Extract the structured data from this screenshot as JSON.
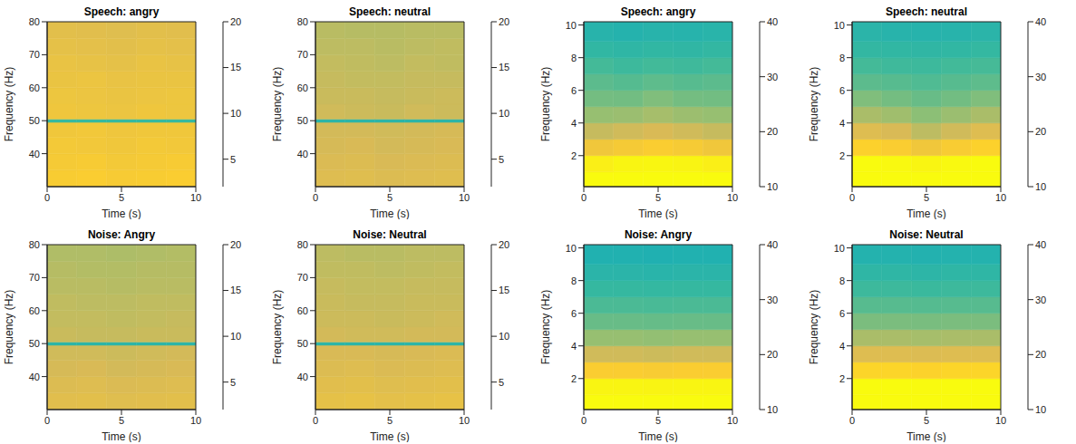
{
  "chart_data": [
    {
      "type": "heatmap",
      "title": "Speech: angry",
      "x_label": "Time (s)",
      "y_label": "Frequency (Hz)",
      "xlim": [
        0,
        10
      ],
      "xticks": [
        0,
        5,
        10
      ],
      "ylim": [
        30,
        80
      ],
      "yticks": [
        40,
        50,
        60,
        70,
        80
      ],
      "x_edges": [
        0,
        2,
        4,
        6,
        8,
        10
      ],
      "y_edges": [
        30,
        35,
        40,
        45,
        49.5,
        50.5,
        55,
        60,
        65,
        70,
        75,
        80
      ],
      "cells": [
        [
          17.5,
          17.6,
          17.4,
          17.5,
          17.6
        ],
        [
          17.3,
          17.4,
          17.2,
          17.3,
          17.4
        ],
        [
          17.2,
          17.1,
          17.0,
          17.2,
          17.1
        ],
        [
          17.0,
          17.1,
          16.9,
          17.0,
          17.0
        ],
        [
          11,
          11,
          11,
          11,
          11
        ],
        [
          16.9,
          16.8,
          16.7,
          16.9,
          16.8
        ],
        [
          16.8,
          16.7,
          16.6,
          16.7,
          16.8
        ],
        [
          16.6,
          16.7,
          16.5,
          16.6,
          16.6
        ],
        [
          16.5,
          16.4,
          16.3,
          16.5,
          16.4
        ],
        [
          16.3,
          16.2,
          16.1,
          16.3,
          16.2
        ],
        [
          16.1,
          16.0,
          15.9,
          16.1,
          16.0
        ]
      ],
      "colorbar": {
        "range": [
          2,
          20
        ],
        "ticks": [
          5,
          10,
          15,
          20
        ]
      }
    },
    {
      "type": "heatmap",
      "title": "Speech: neutral",
      "x_label": "Time (s)",
      "y_label": "Frequency (Hz)",
      "xlim": [
        0,
        10
      ],
      "xticks": [
        0,
        5,
        10
      ],
      "ylim": [
        30,
        80
      ],
      "yticks": [
        40,
        50,
        60,
        70,
        80
      ],
      "x_edges": [
        0,
        2,
        4,
        6,
        8,
        10
      ],
      "y_edges": [
        30,
        35,
        40,
        45,
        49.5,
        50.5,
        55,
        60,
        65,
        70,
        75,
        80
      ],
      "cells": [
        [
          15.8,
          15.9,
          15.7,
          15.8,
          15.9
        ],
        [
          15.6,
          15.7,
          15.5,
          15.6,
          15.7
        ],
        [
          15.4,
          15.5,
          15.3,
          15.4,
          15.5
        ],
        [
          15.3,
          15.3,
          15.2,
          15.3,
          15.4
        ],
        [
          10.5,
          10.5,
          10.5,
          10.5,
          10.5
        ],
        [
          15.2,
          15.1,
          15.0,
          15.2,
          15.1
        ],
        [
          15.0,
          15.0,
          14.9,
          15.0,
          15.1
        ],
        [
          14.9,
          14.8,
          14.8,
          14.9,
          14.9
        ],
        [
          14.8,
          14.7,
          14.6,
          14.8,
          14.7
        ],
        [
          14.6,
          14.6,
          14.5,
          14.6,
          14.7
        ],
        [
          14.5,
          14.4,
          14.4,
          14.5,
          14.5
        ]
      ],
      "colorbar": {
        "range": [
          2,
          20
        ],
        "ticks": [
          5,
          10,
          15,
          20
        ]
      }
    },
    {
      "type": "heatmap",
      "title": "Speech: angry",
      "x_label": "Time (s)",
      "y_label": "Frequency (Hz)",
      "xlim": [
        0,
        10
      ],
      "xticks": [
        0,
        5,
        10
      ],
      "ylim": [
        0.1,
        10.2
      ],
      "yticks": [
        2,
        4,
        6,
        8,
        10
      ],
      "x_edges": [
        0,
        2,
        4,
        6,
        8,
        10
      ],
      "y_edges": [
        0.1,
        1,
        2,
        3,
        4,
        5,
        6,
        7,
        8,
        9,
        10.2
      ],
      "cells": [
        [
          40,
          40,
          40,
          40,
          40
        ],
        [
          39,
          39.5,
          39.6,
          39.4,
          39
        ],
        [
          35,
          35.5,
          36,
          35.6,
          35
        ],
        [
          31.5,
          32,
          32.5,
          32,
          31.5
        ],
        [
          29,
          29.2,
          29.8,
          29.3,
          29
        ],
        [
          27.5,
          27.4,
          28,
          27.5,
          27.4
        ],
        [
          26.5,
          26.2,
          26.6,
          26.3,
          26.5
        ],
        [
          25.5,
          25.2,
          25.4,
          25.3,
          25.5
        ],
        [
          24.5,
          24.3,
          24.5,
          24.4,
          24.6
        ],
        [
          23.8,
          23.6,
          23.8,
          23.7,
          23.9
        ]
      ],
      "colorbar": {
        "range": [
          10,
          40
        ],
        "ticks": [
          10,
          20,
          30,
          40
        ]
      }
    },
    {
      "type": "heatmap",
      "title": "Speech: neutral",
      "x_label": "Time (s)",
      "y_label": "Frequency (Hz)",
      "xlim": [
        0,
        10
      ],
      "xticks": [
        0,
        5,
        10
      ],
      "ylim": [
        0.1,
        10.2
      ],
      "yticks": [
        2,
        4,
        6,
        8,
        10
      ],
      "x_edges": [
        0,
        2,
        4,
        6,
        8,
        10
      ],
      "y_edges": [
        0.1,
        1,
        2,
        3,
        4,
        5,
        6,
        7,
        8,
        9,
        10.2
      ],
      "cells": [
        [
          40,
          40,
          40,
          40,
          40
        ],
        [
          40,
          39.8,
          39.5,
          39.8,
          40
        ],
        [
          36.5,
          36,
          35,
          35.8,
          36.5
        ],
        [
          33,
          32.5,
          31,
          32,
          33
        ],
        [
          30,
          29.5,
          28.5,
          29.2,
          30
        ],
        [
          28,
          27.5,
          27,
          27.4,
          28
        ],
        [
          26.5,
          26.3,
          26,
          26.3,
          26.6
        ],
        [
          25.5,
          25.3,
          25.2,
          25.4,
          25.6
        ],
        [
          24.6,
          24.5,
          24.4,
          24.5,
          24.7
        ],
        [
          24,
          23.8,
          23.7,
          23.8,
          24
        ]
      ],
      "colorbar": {
        "range": [
          10,
          40
        ],
        "ticks": [
          10,
          20,
          30,
          40
        ]
      }
    },
    {
      "type": "heatmap",
      "title": "Noise: Angry",
      "x_label": "Time (s)",
      "y_label": "Frequency (Hz)",
      "xlim": [
        0,
        10
      ],
      "xticks": [
        0,
        5,
        10
      ],
      "ylim": [
        30,
        80
      ],
      "yticks": [
        40,
        50,
        60,
        70,
        80
      ],
      "x_edges": [
        0,
        2,
        4,
        6,
        8,
        10
      ],
      "y_edges": [
        30,
        35,
        40,
        45,
        49.5,
        50.5,
        55,
        60,
        65,
        70,
        75,
        80
      ],
      "cells": [
        [
          16.0,
          16.1,
          15.9,
          16.0,
          16.1
        ],
        [
          15.7,
          15.8,
          15.6,
          15.7,
          15.8
        ],
        [
          15.4,
          15.5,
          15.3,
          15.4,
          15.5
        ],
        [
          15.2,
          15.2,
          15.1,
          15.2,
          15.3
        ],
        [
          10.5,
          10.5,
          10.5,
          10.5,
          10.5
        ],
        [
          15.0,
          14.9,
          14.9,
          15.0,
          15.0
        ],
        [
          14.8,
          14.8,
          14.7,
          14.8,
          14.9
        ],
        [
          14.7,
          14.6,
          14.6,
          14.7,
          14.7
        ],
        [
          14.5,
          14.5,
          14.4,
          14.5,
          14.5
        ],
        [
          14.4,
          14.3,
          14.3,
          14.4,
          14.4
        ],
        [
          14.2,
          14.2,
          14.1,
          14.2,
          14.3
        ]
      ],
      "colorbar": {
        "range": [
          2,
          20
        ],
        "ticks": [
          5,
          10,
          15,
          20
        ]
      }
    },
    {
      "type": "heatmap",
      "title": "Noise: Neutral",
      "x_label": "Time (s)",
      "y_label": "Frequency (Hz)",
      "xlim": [
        0,
        10
      ],
      "xticks": [
        0,
        5,
        10
      ],
      "ylim": [
        30,
        80
      ],
      "yticks": [
        40,
        50,
        60,
        70,
        80
      ],
      "x_edges": [
        0,
        2,
        4,
        6,
        8,
        10
      ],
      "y_edges": [
        30,
        35,
        40,
        45,
        49.5,
        50.5,
        55,
        60,
        65,
        70,
        75,
        80
      ],
      "cells": [
        [
          16.3,
          16.4,
          16.2,
          16.3,
          16.4
        ],
        [
          16.0,
          16.1,
          15.9,
          16.0,
          16.1
        ],
        [
          15.7,
          15.8,
          15.6,
          15.7,
          15.8
        ],
        [
          15.5,
          15.5,
          15.4,
          15.5,
          15.6
        ],
        [
          10.5,
          10.5,
          10.5,
          10.5,
          10.5
        ],
        [
          15.3,
          15.2,
          15.2,
          15.3,
          15.3
        ],
        [
          15.1,
          15.1,
          15.0,
          15.1,
          15.2
        ],
        [
          15.0,
          14.9,
          14.9,
          15.0,
          15.0
        ],
        [
          14.9,
          14.8,
          14.8,
          14.9,
          14.9
        ],
        [
          14.7,
          14.7,
          14.6,
          14.7,
          14.8
        ],
        [
          14.6,
          14.5,
          14.5,
          14.6,
          14.6
        ]
      ],
      "colorbar": {
        "range": [
          2,
          20
        ],
        "ticks": [
          5,
          10,
          15,
          20
        ]
      }
    },
    {
      "type": "heatmap",
      "title": "Noise: Angry",
      "x_label": "Time (s)",
      "y_label": "Frequency (Hz)",
      "xlim": [
        0,
        10
      ],
      "xticks": [
        0,
        5,
        10
      ],
      "ylim": [
        0.1,
        10.2
      ],
      "yticks": [
        2,
        4,
        6,
        8,
        10
      ],
      "x_edges": [
        0,
        2,
        4,
        6,
        8,
        10
      ],
      "y_edges": [
        0.1,
        1,
        2,
        3,
        4,
        5,
        6,
        7,
        8,
        9,
        10.2
      ],
      "cells": [
        [
          40,
          40,
          40,
          40,
          40
        ],
        [
          39.5,
          39.5,
          39.4,
          39.5,
          39.5
        ],
        [
          36,
          36,
          35.8,
          36,
          36
        ],
        [
          32,
          32,
          31.8,
          32,
          32
        ],
        [
          29,
          29,
          28.8,
          29,
          29
        ],
        [
          27,
          27,
          26.9,
          27,
          27
        ],
        [
          25.8,
          25.8,
          25.7,
          25.8,
          25.8
        ],
        [
          24.8,
          24.8,
          24.7,
          24.8,
          24.8
        ],
        [
          24,
          24,
          23.9,
          24,
          24
        ],
        [
          23.3,
          23.3,
          23.2,
          23.3,
          23.3
        ]
      ],
      "colorbar": {
        "range": [
          10,
          40
        ],
        "ticks": [
          10,
          20,
          30,
          40
        ]
      }
    },
    {
      "type": "heatmap",
      "title": "Noise: Neutral",
      "x_label": "Time (s)",
      "y_label": "Frequency (Hz)",
      "xlim": [
        0,
        10
      ],
      "xticks": [
        0,
        5,
        10
      ],
      "ylim": [
        0.1,
        10.2
      ],
      "yticks": [
        2,
        4,
        6,
        8,
        10
      ],
      "x_edges": [
        0,
        2,
        4,
        6,
        8,
        10
      ],
      "y_edges": [
        0.1,
        1,
        2,
        3,
        4,
        5,
        6,
        7,
        8,
        9,
        10.2
      ],
      "cells": [
        [
          40,
          40,
          40,
          40,
          40
        ],
        [
          40,
          40,
          39.9,
          40,
          40
        ],
        [
          36.8,
          36.8,
          36.6,
          36.8,
          36.8
        ],
        [
          33,
          33,
          32.8,
          33,
          33
        ],
        [
          30,
          30,
          29.8,
          30,
          30
        ],
        [
          27.8,
          27.8,
          27.7,
          27.8,
          27.8
        ],
        [
          26.3,
          26.3,
          26.2,
          26.3,
          26.3
        ],
        [
          25.2,
          25.2,
          25.1,
          25.2,
          25.2
        ],
        [
          24.3,
          24.3,
          24.2,
          24.3,
          24.3
        ],
        [
          23.5,
          23.5,
          23.4,
          23.5,
          23.5
        ]
      ],
      "colorbar": {
        "range": [
          10,
          40
        ],
        "ticks": [
          10,
          20,
          30,
          40
        ]
      }
    }
  ]
}
